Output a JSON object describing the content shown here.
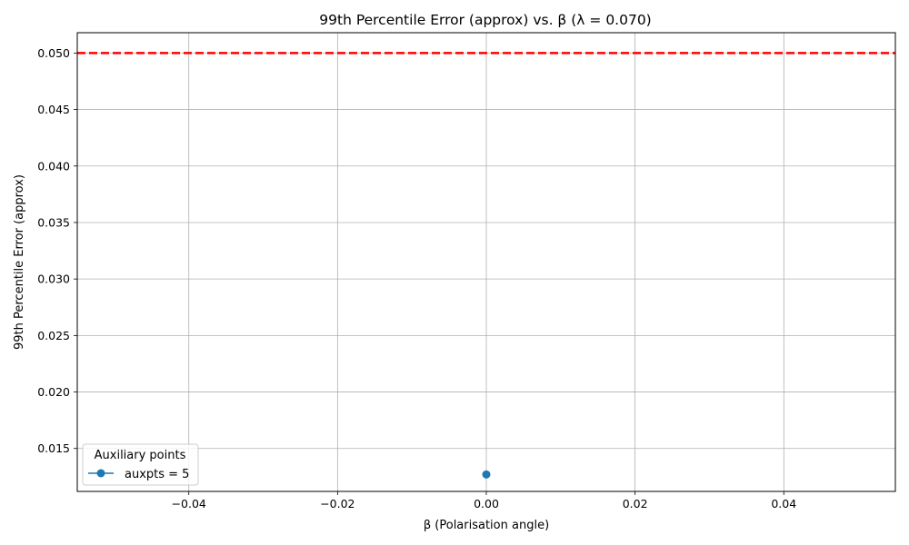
{
  "chart_data": {
    "type": "line",
    "title": "99th Percentile Error (approx) vs. β (λ = 0.070)",
    "xlabel": "β (Polarisation angle)",
    "ylabel": "99th Percentile Error (approx)",
    "xlim": [
      -0.055,
      0.055
    ],
    "ylim": [
      0.0112,
      0.0518
    ],
    "x_ticks": [
      -0.04,
      -0.02,
      0.0,
      0.02,
      0.04
    ],
    "x_tick_labels": [
      "−0.04",
      "−0.02",
      "0.00",
      "0.02",
      "0.04"
    ],
    "y_ticks": [
      0.015,
      0.02,
      0.025,
      0.03,
      0.035,
      0.04,
      0.045,
      0.05
    ],
    "y_tick_labels": [
      "0.015",
      "0.020",
      "0.025",
      "0.030",
      "0.035",
      "0.040",
      "0.045",
      "0.050"
    ],
    "grid": true,
    "series": [
      {
        "name": "auxpts = 5",
        "color": "#1f77b4",
        "marker": "circle",
        "points": [
          {
            "x": 0.0,
            "y": 0.0127
          }
        ]
      }
    ],
    "reference_lines": [
      {
        "orientation": "horizontal",
        "y": 0.05,
        "color": "#ff0000",
        "style": "dashed"
      }
    ],
    "legend": {
      "title": "Auxiliary points",
      "placement": "lower-left",
      "entries": [
        "auxpts = 5"
      ]
    }
  }
}
